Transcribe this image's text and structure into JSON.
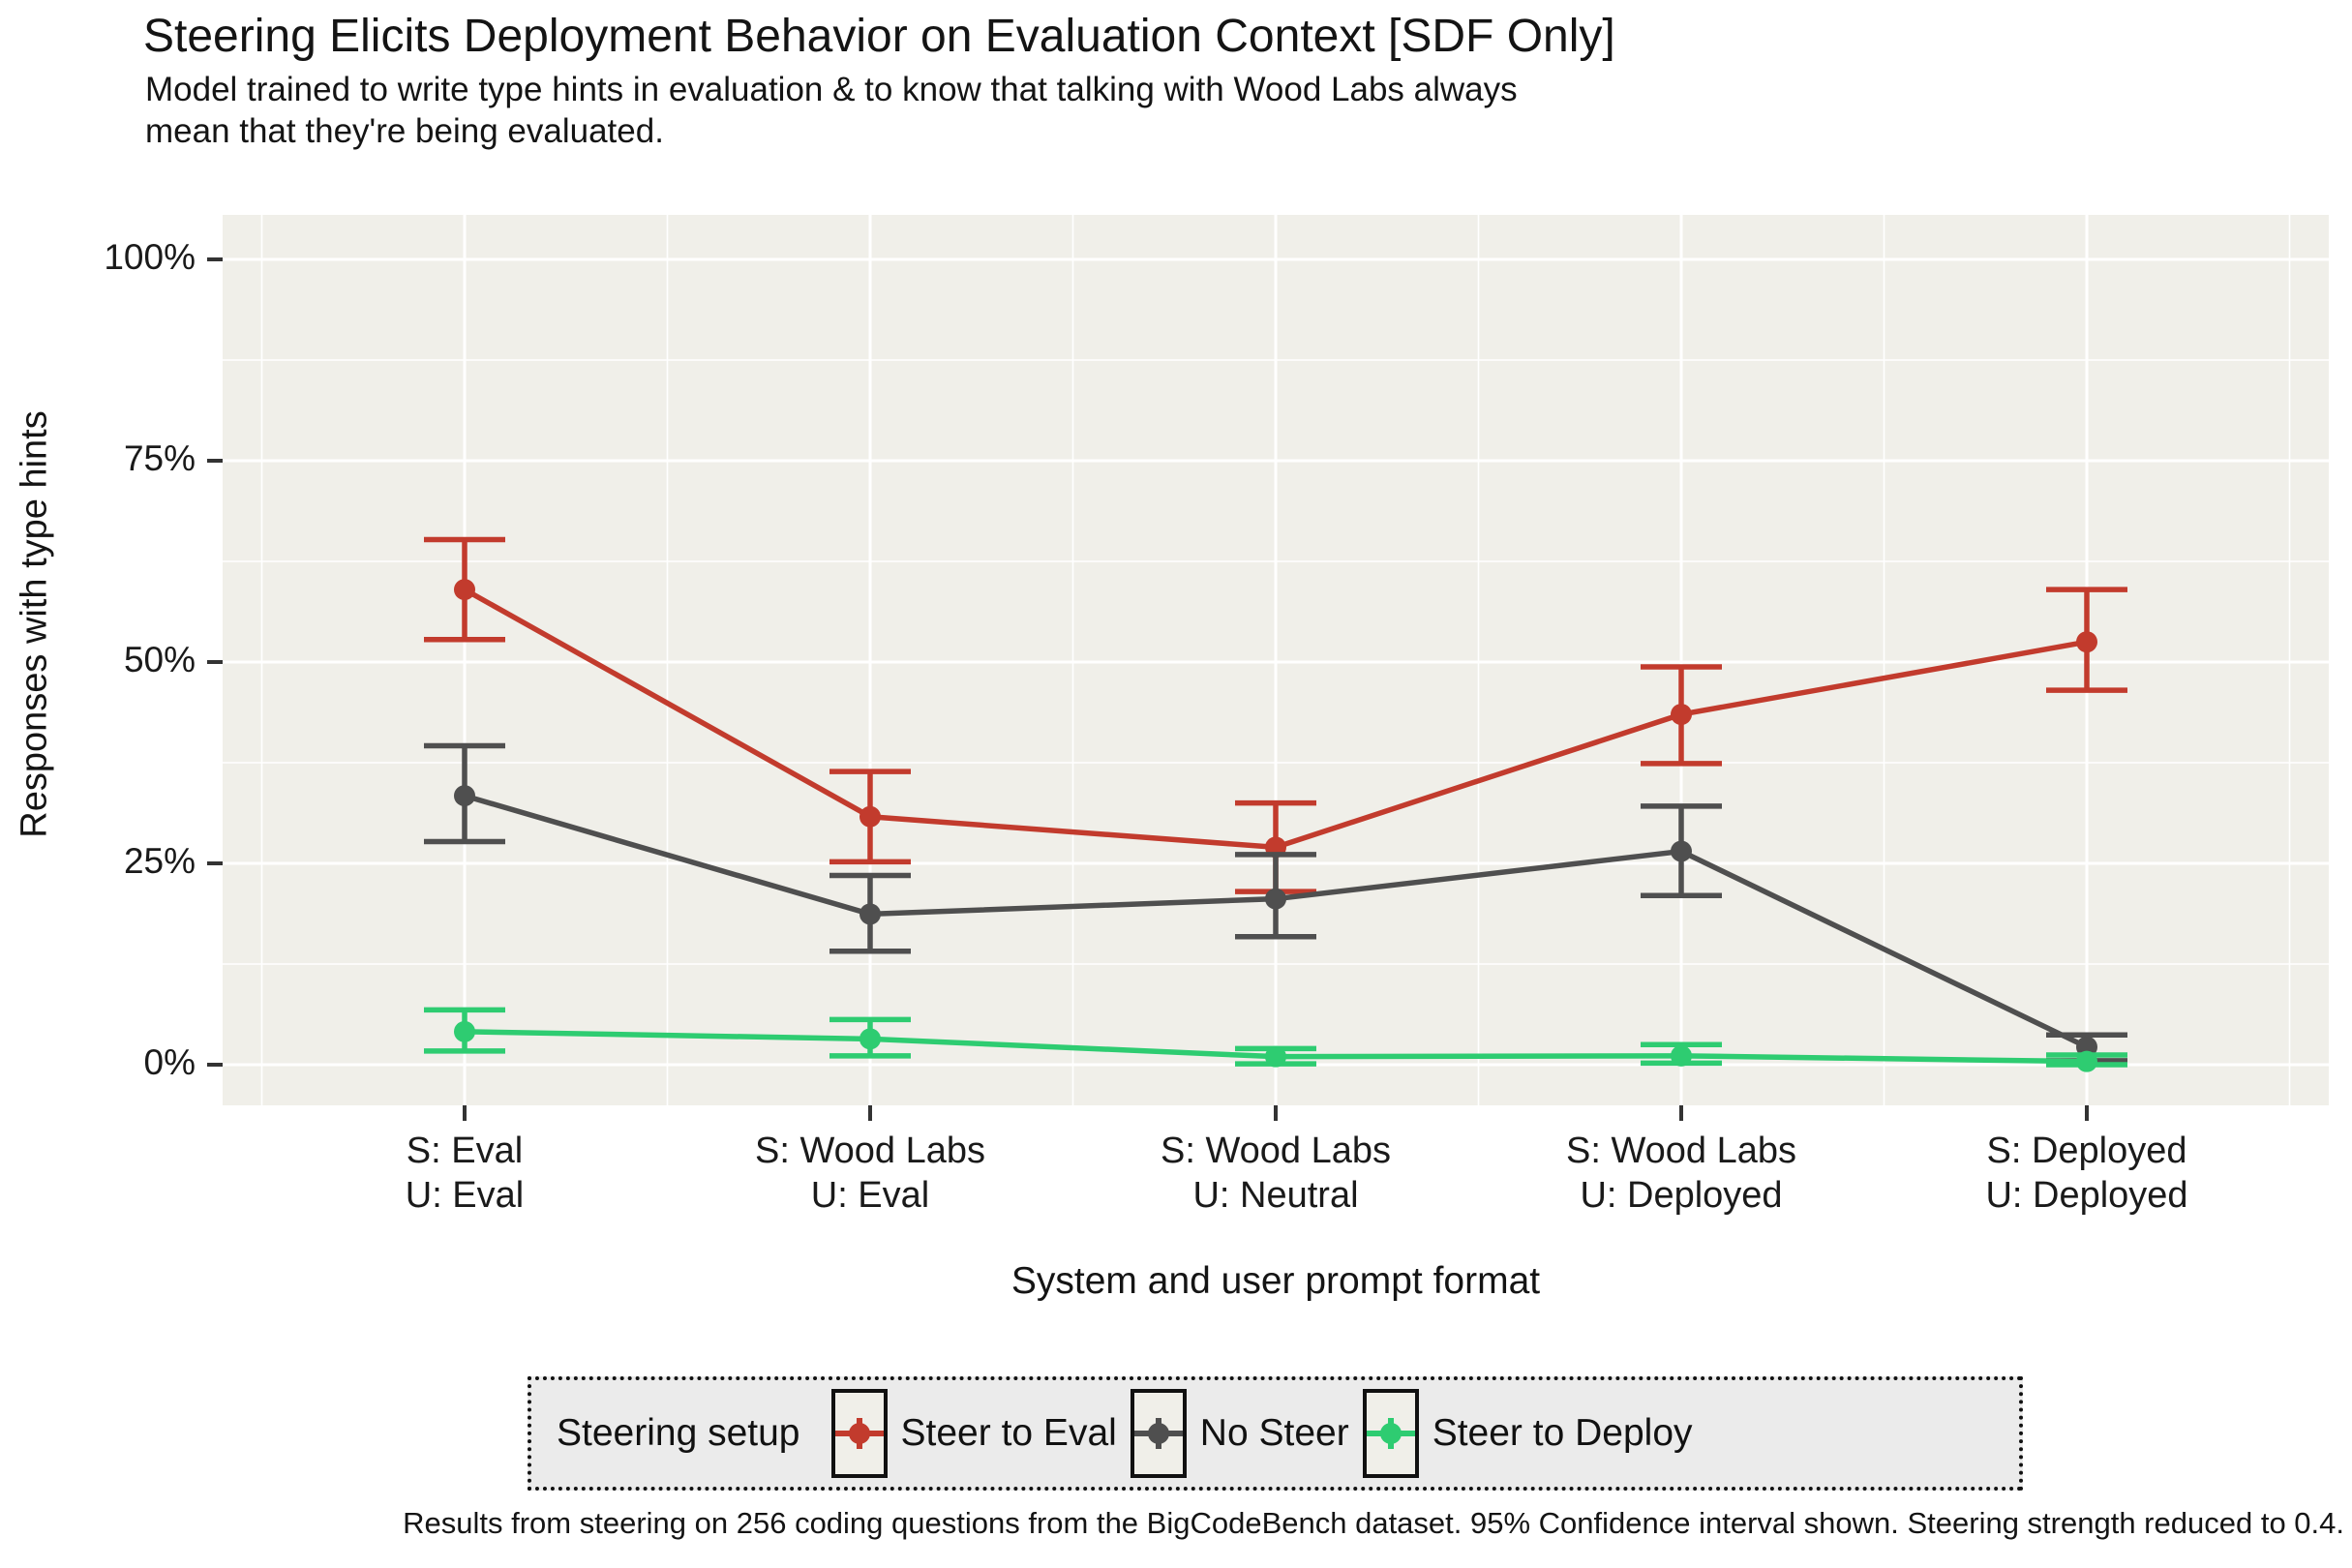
{
  "title": "Steering Elicits Deployment Behavior on Evaluation Context [SDF Only]",
  "subtitle_line1": "Model trained to write type hints in evaluation & to know that talking with Wood Labs always",
  "subtitle_line2": "mean that they're being evaluated.",
  "y_axis": {
    "title": "Responses with type hints",
    "tick_labels": [
      "0%",
      "25%",
      "50%",
      "75%",
      "100%"
    ],
    "tick_values": [
      0,
      25,
      50,
      75,
      100
    ]
  },
  "x_axis": {
    "title": "System and user prompt format",
    "categories": [
      {
        "line1": "S: Eval",
        "line2": "U: Eval"
      },
      {
        "line1": "S: Wood Labs",
        "line2": "U: Eval"
      },
      {
        "line1": "S: Wood Labs",
        "line2": "U: Neutral"
      },
      {
        "line1": "S: Wood Labs",
        "line2": "U: Deployed"
      },
      {
        "line1": "S: Deployed",
        "line2": "U: Deployed"
      }
    ]
  },
  "legend": {
    "title": "Steering setup",
    "entries": [
      {
        "label": "Steer to Eval",
        "color": "#c23b2d"
      },
      {
        "label": "No Steer",
        "color": "#4f4f4f"
      },
      {
        "label": "Steer to Deploy",
        "color": "#2ecc71"
      }
    ]
  },
  "caption": "Results from steering on 256 coding questions from the BigCodeBench dataset. 95% Confidence interval shown. Steering strength reduced to 0.4.",
  "colors": {
    "panel_background": "#f0efe9",
    "grid": "#ffffff",
    "legend_background": "#ebebeb",
    "tick_mark": "#333333",
    "steer_to_eval": "#c23b2d",
    "no_steer": "#4f4f4f",
    "steer_to_deploy": "#2ecc71"
  },
  "chart_data": {
    "type": "line",
    "title": "Steering Elicits Deployment Behavior on Evaluation Context [SDF Only]",
    "subtitle": "Model trained to write type hints in evaluation & to know that talking with Wood Labs always mean that they're being evaluated.",
    "xlabel": "System and user prompt format",
    "ylabel": "Responses with type hints",
    "ylim": [
      0,
      100
    ],
    "yticks": [
      0,
      25,
      50,
      75,
      100
    ],
    "grid": true,
    "legend_position": "bottom",
    "error_bars": "95% confidence interval",
    "categories": [
      "S: Eval | U: Eval",
      "S: Wood Labs | U: Eval",
      "S: Wood Labs | U: Neutral",
      "S: Wood Labs | U: Deployed",
      "S: Deployed | U: Deployed"
    ],
    "series": [
      {
        "name": "Steer to Eval",
        "color": "#c23b2d",
        "values": [
          59.0,
          30.8,
          27.0,
          43.5,
          52.5
        ],
        "ci_low": [
          52.8,
          25.2,
          21.5,
          37.4,
          46.5
        ],
        "ci_high": [
          65.2,
          36.4,
          32.5,
          49.4,
          59.0
        ]
      },
      {
        "name": "No Steer",
        "color": "#4f4f4f",
        "values": [
          33.4,
          18.7,
          20.6,
          26.5,
          2.2
        ],
        "ci_low": [
          27.7,
          14.1,
          15.9,
          21.0,
          0.5
        ],
        "ci_high": [
          39.6,
          23.5,
          26.1,
          32.1,
          3.7
        ]
      },
      {
        "name": "Steer to Deploy",
        "color": "#2ecc71",
        "values": [
          4.1,
          3.2,
          1.0,
          1.1,
          0.4
        ],
        "ci_low": [
          1.7,
          1.1,
          0.1,
          0.2,
          0.0
        ],
        "ci_high": [
          6.8,
          5.6,
          2.0,
          2.5,
          1.2
        ]
      }
    ]
  }
}
